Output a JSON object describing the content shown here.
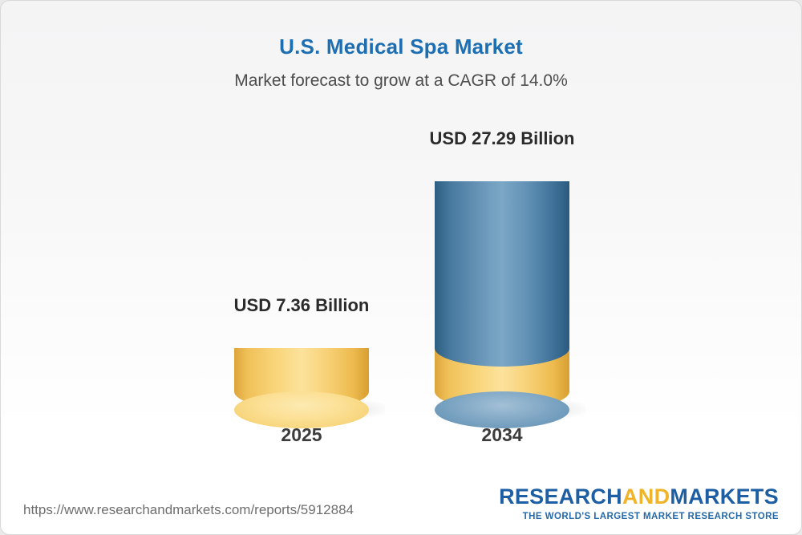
{
  "header": {
    "title": "U.S. Medical Spa Market",
    "subtitle": "Market forecast to grow at a CAGR of 14.0%"
  },
  "chart_data": {
    "type": "bar",
    "title": "U.S. Medical Spa Market",
    "subtitle": "Market forecast to grow at a CAGR of 14.0%",
    "categories": [
      "2025",
      "2034"
    ],
    "values": [
      7.36,
      27.29
    ],
    "value_labels": [
      "USD 7.36 Billion",
      "USD 27.29 Billion"
    ],
    "unit": "USD Billion",
    "cagr_percent": 14.0,
    "legend_position": "none",
    "grid": false,
    "colors": {
      "bar_2025": "#F4CC67",
      "bar_2034_top": "#4C7EA8",
      "bar_2034_base": "#F4CC67",
      "title_accent": "#1E6FB2"
    }
  },
  "bars": [
    {
      "year": "2025",
      "label": "USD 7.36 Billion",
      "value": 7.36
    },
    {
      "year": "2034",
      "label": "USD 27.29 Billion",
      "value": 27.29,
      "overlay_value": 7.36
    }
  ],
  "footer": {
    "url": "https://www.researchandmarkets.com/reports/5912884",
    "logo": {
      "part1": "RESEARCH",
      "part2": "AND",
      "part3": "MARKETS",
      "tagline": "THE WORLD'S LARGEST MARKET RESEARCH STORE"
    }
  }
}
